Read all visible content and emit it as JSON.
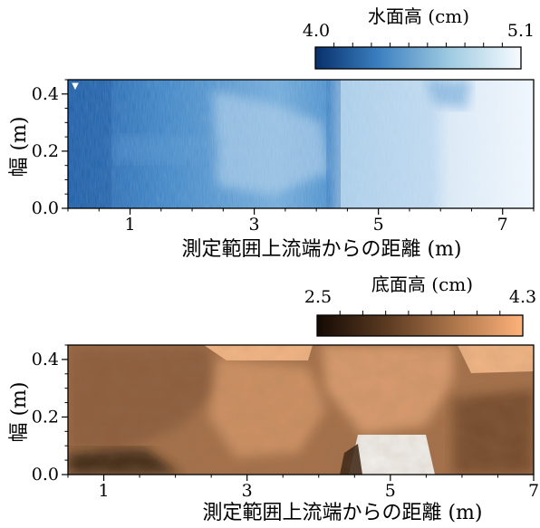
{
  "chart_data": [
    {
      "type": "heatmap",
      "colorbar": {
        "title": "水面高 (cm)",
        "min_label": "4.0",
        "max_label": "5.1",
        "range": [
          4.0,
          5.1
        ],
        "colors": [
          "#08306b",
          "#c6dbef",
          "#f7fbff"
        ]
      },
      "xlabel": "測定範囲上流端からの距離 (m)",
      "ylabel": "幅 (m)",
      "xlim": [
        0,
        7.5
      ],
      "ylim": [
        0,
        0.45
      ],
      "xticks": [
        "1",
        "3",
        "5",
        "7"
      ],
      "yticks": [
        "0.0",
        "0.2",
        "0.4"
      ],
      "zones": [
        {
          "x": [
            0,
            1.3
          ],
          "value": 4.1
        },
        {
          "x": [
            1.3,
            4.3
          ],
          "value": 4.4
        },
        {
          "x": [
            4.3,
            6.0
          ],
          "value": 4.7
        },
        {
          "x": [
            6.0,
            7.5
          ],
          "value": 4.95
        }
      ]
    },
    {
      "type": "heatmap",
      "colorbar": {
        "title": "底面高 (cm)",
        "min_label": "2.5",
        "max_label": "4.3",
        "range": [
          2.5,
          4.3
        ],
        "colors": [
          "#1a0d05",
          "#a9724a",
          "#ffb27a"
        ]
      },
      "xlabel": "測定範囲上流端からの距離 (m)",
      "ylabel": "幅 (m)",
      "xlim": [
        0.5,
        7
      ],
      "ylim": [
        0,
        0.45
      ],
      "xticks": [
        "1",
        "3",
        "5",
        "7"
      ],
      "yticks": [
        "0.0",
        "0.2",
        "0.4"
      ]
    }
  ]
}
